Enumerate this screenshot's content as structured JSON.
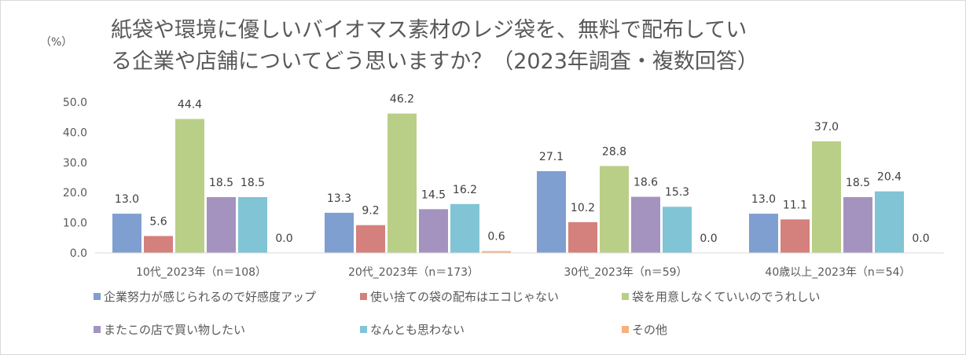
{
  "chart_data": {
    "type": "bar",
    "title": "紙袋や環境に優しいバイオマス素材のレジ袋を、無料で配布している企業や店舗についてどう思いますか？（2023年調査・複数回答）",
    "title_lines": [
      "紙袋や環境に優しいバイオマス素材のレジ袋を、無料で配布してい",
      "る企業や店舗についてどう思いますか？（2023年調査・複数回答）"
    ],
    "ylabel": "（%）",
    "ylim": [
      0,
      50
    ],
    "yticks": [
      "0.0",
      "10.0",
      "20.0",
      "30.0",
      "40.0",
      "50.0"
    ],
    "grid": false,
    "legend_position": "bottom",
    "categories": [
      "10代_2023年（n＝108）",
      "20代_2023年（n＝173）",
      "30代_2023年（n＝59）",
      "40歳以上_2023年（n＝54）"
    ],
    "series": [
      {
        "name": "企業努力が感じられるので好感度アップ",
        "color": "#7f9fd0",
        "values": [
          13.0,
          13.3,
          27.1,
          13.0
        ],
        "labels": [
          "13.0",
          "13.3",
          "27.1",
          "13.0"
        ]
      },
      {
        "name": "使い捨ての袋の配布はエコじゃない",
        "color": "#d4807d",
        "values": [
          5.6,
          9.2,
          10.2,
          11.1
        ],
        "labels": [
          "5.6",
          "9.2",
          "10.2",
          "11.1"
        ]
      },
      {
        "name": "袋を用意しなくていいのでうれしい",
        "color": "#b9cf88",
        "values": [
          44.4,
          46.2,
          28.8,
          37.0
        ],
        "labels": [
          "44.4",
          "46.2",
          "28.8",
          "37.0"
        ]
      },
      {
        "name": "またこの店で買い物したい",
        "color": "#a493be",
        "values": [
          18.5,
          14.5,
          18.6,
          18.5
        ],
        "labels": [
          "18.5",
          "14.5",
          "18.6",
          "18.5"
        ]
      },
      {
        "name": "なんとも思わない",
        "color": "#80c4d6",
        "values": [
          18.5,
          16.2,
          15.3,
          20.4
        ],
        "labels": [
          "18.5",
          "16.2",
          "15.3",
          "20.4"
        ]
      },
      {
        "name": "その他",
        "color": "#f8b07d",
        "values": [
          0.0,
          0.6,
          0.0,
          0.0
        ],
        "labels": [
          "0.0",
          "0.6",
          "0.0",
          "0.0"
        ]
      }
    ]
  }
}
